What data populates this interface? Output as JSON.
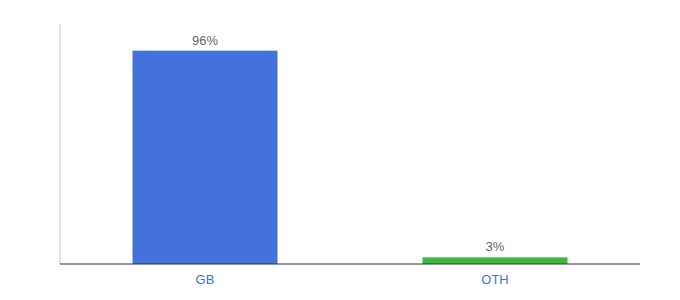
{
  "chart_data": {
    "type": "bar",
    "categories": [
      "GB",
      "OTH"
    ],
    "values": [
      96,
      3
    ],
    "value_labels": [
      "96%",
      "3%"
    ],
    "colors": [
      "#4472db",
      "#3dba3d"
    ],
    "ylim": [
      0,
      108
    ],
    "data_labels": true,
    "tick_labels": "x"
  }
}
